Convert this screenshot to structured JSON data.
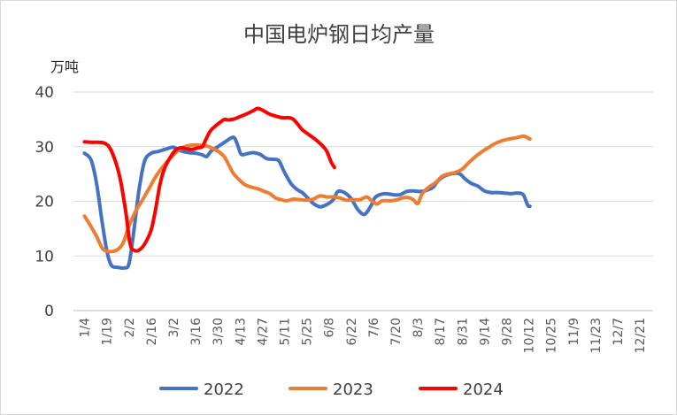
{
  "chart_data": {
    "type": "line",
    "title": "中国电炉钢日均产量",
    "ylabel": "万吨",
    "xlabel": "",
    "ylim": [
      0,
      40
    ],
    "y_ticks": [
      "0",
      "10",
      "20",
      "30",
      "40"
    ],
    "grid": true,
    "legend_position": "bottom",
    "categories": [
      "1/4",
      "1/19",
      "2/2",
      "2/16",
      "3/2",
      "3/16",
      "3/30",
      "4/13",
      "4/27",
      "5/11",
      "5/25",
      "6/8",
      "6/22",
      "7/6",
      "7/20",
      "8/3",
      "8/17",
      "8/31",
      "9/14",
      "9/28",
      "10/12",
      "10/25",
      "11/9",
      "11/23",
      "12/7",
      "12/21"
    ],
    "series": [
      {
        "name": "2022",
        "color": "#4472c4",
        "points": [
          [
            0,
            28.8
          ],
          [
            0.3,
            27.5
          ],
          [
            0.55,
            23
          ],
          [
            0.8,
            16
          ],
          [
            1.0,
            11
          ],
          [
            1.2,
            8.3
          ],
          [
            1.5,
            7.9
          ],
          [
            1.8,
            7.8
          ],
          [
            2.0,
            8.6
          ],
          [
            2.2,
            14
          ],
          [
            2.45,
            22
          ],
          [
            2.7,
            27.3
          ],
          [
            3.0,
            28.8
          ],
          [
            3.3,
            29.1
          ],
          [
            3.7,
            29.6
          ],
          [
            4.0,
            29.9
          ],
          [
            4.3,
            29.3
          ],
          [
            4.7,
            28.9
          ],
          [
            5.0,
            28.8
          ],
          [
            5.3,
            28.5
          ],
          [
            5.5,
            28.2
          ],
          [
            5.7,
            29.2
          ],
          [
            6.0,
            30.0
          ],
          [
            6.3,
            30.8
          ],
          [
            6.6,
            31.6
          ],
          [
            6.75,
            31.6
          ],
          [
            6.9,
            30.2
          ],
          [
            7.05,
            28.6
          ],
          [
            7.3,
            28.7
          ],
          [
            7.6,
            28.9
          ],
          [
            7.9,
            28.6
          ],
          [
            8.2,
            27.8
          ],
          [
            8.5,
            27.7
          ],
          [
            8.75,
            27.4
          ],
          [
            9.0,
            25.3
          ],
          [
            9.3,
            23.2
          ],
          [
            9.55,
            22.2
          ],
          [
            9.8,
            21.6
          ],
          [
            10.0,
            20.8
          ],
          [
            10.3,
            19.6
          ],
          [
            10.6,
            19.0
          ],
          [
            10.9,
            19.4
          ],
          [
            11.2,
            20.3
          ],
          [
            11.4,
            21.8
          ],
          [
            11.7,
            21.6
          ],
          [
            12.0,
            20.5
          ],
          [
            12.3,
            18.5
          ],
          [
            12.6,
            17.6
          ],
          [
            12.9,
            19.2
          ],
          [
            13.1,
            20.8
          ],
          [
            13.5,
            21.4
          ],
          [
            13.9,
            21.2
          ],
          [
            14.2,
            21.2
          ],
          [
            14.5,
            21.8
          ],
          [
            14.8,
            21.9
          ],
          [
            15.1,
            21.8
          ],
          [
            15.4,
            22.0
          ],
          [
            15.7,
            22.6
          ],
          [
            15.9,
            23.7
          ],
          [
            16.2,
            24.6
          ],
          [
            16.6,
            25.1
          ],
          [
            16.9,
            25.0
          ],
          [
            17.1,
            24.2
          ],
          [
            17.4,
            23.3
          ],
          [
            17.7,
            22.8
          ],
          [
            18.0,
            21.9
          ],
          [
            18.3,
            21.6
          ],
          [
            18.6,
            21.6
          ],
          [
            18.9,
            21.5
          ],
          [
            19.2,
            21.4
          ],
          [
            19.5,
            21.5
          ],
          [
            19.75,
            21.2
          ],
          [
            19.95,
            19.3
          ],
          [
            20.05,
            19.1
          ]
        ]
      },
      {
        "name": "2023",
        "color": "#ed7d31",
        "points": [
          [
            0,
            17.3
          ],
          [
            0.3,
            15.3
          ],
          [
            0.55,
            13.5
          ],
          [
            0.8,
            11.4
          ],
          [
            1.0,
            10.9
          ],
          [
            1.25,
            10.8
          ],
          [
            1.5,
            11.2
          ],
          [
            1.75,
            12.5
          ],
          [
            2.0,
            15.5
          ],
          [
            2.3,
            18.2
          ],
          [
            2.6,
            20.2
          ],
          [
            2.9,
            22.3
          ],
          [
            3.2,
            24.5
          ],
          [
            3.5,
            26.2
          ],
          [
            3.8,
            27.6
          ],
          [
            4.1,
            28.9
          ],
          [
            4.4,
            29.8
          ],
          [
            4.7,
            30.2
          ],
          [
            5.0,
            30.3
          ],
          [
            5.3,
            30.2
          ],
          [
            5.6,
            30.0
          ],
          [
            5.9,
            29.4
          ],
          [
            6.1,
            28.9
          ],
          [
            6.3,
            28.1
          ],
          [
            6.5,
            26.6
          ],
          [
            6.7,
            25.1
          ],
          [
            6.95,
            24.0
          ],
          [
            7.2,
            23.1
          ],
          [
            7.5,
            22.6
          ],
          [
            7.8,
            22.3
          ],
          [
            8.1,
            21.8
          ],
          [
            8.35,
            21.4
          ],
          [
            8.6,
            20.6
          ],
          [
            8.85,
            20.3
          ],
          [
            9.1,
            20.1
          ],
          [
            9.4,
            20.4
          ],
          [
            9.7,
            20.3
          ],
          [
            10.0,
            20.2
          ],
          [
            10.3,
            20.4
          ],
          [
            10.6,
            21.0
          ],
          [
            10.9,
            20.8
          ],
          [
            11.2,
            20.8
          ],
          [
            11.5,
            20.6
          ],
          [
            11.8,
            20.2
          ],
          [
            12.1,
            20.3
          ],
          [
            12.4,
            20.3
          ],
          [
            12.7,
            20.8
          ],
          [
            12.9,
            20.2
          ],
          [
            13.15,
            19.5
          ],
          [
            13.4,
            20.1
          ],
          [
            13.8,
            20.1
          ],
          [
            14.1,
            20.3
          ],
          [
            14.3,
            20.6
          ],
          [
            14.55,
            20.7
          ],
          [
            14.8,
            20.3
          ],
          [
            15.0,
            19.6
          ],
          [
            15.2,
            21.4
          ],
          [
            15.5,
            22.6
          ],
          [
            15.8,
            23.4
          ],
          [
            16.1,
            24.6
          ],
          [
            16.4,
            25.0
          ],
          [
            16.7,
            25.3
          ],
          [
            17.0,
            25.9
          ],
          [
            17.3,
            27.1
          ],
          [
            17.6,
            28.2
          ],
          [
            17.9,
            29.1
          ],
          [
            18.2,
            29.9
          ],
          [
            18.5,
            30.6
          ],
          [
            18.8,
            31.1
          ],
          [
            19.1,
            31.4
          ],
          [
            19.4,
            31.6
          ],
          [
            19.6,
            31.8
          ],
          [
            19.8,
            31.9
          ],
          [
            20.05,
            31.4
          ]
        ]
      },
      {
        "name": "2024",
        "color": "#ff0000",
        "points": [
          [
            0,
            30.9
          ],
          [
            0.3,
            30.8
          ],
          [
            0.6,
            30.8
          ],
          [
            0.85,
            30.7
          ],
          [
            1.1,
            30.0
          ],
          [
            1.35,
            27.8
          ],
          [
            1.6,
            24.2
          ],
          [
            1.85,
            18.2
          ],
          [
            2.05,
            12.2
          ],
          [
            2.25,
            11.0
          ],
          [
            2.5,
            11.2
          ],
          [
            2.75,
            12.5
          ],
          [
            3.0,
            14.8
          ],
          [
            3.2,
            18.6
          ],
          [
            3.4,
            23.2
          ],
          [
            3.6,
            26.0
          ],
          [
            3.85,
            28.0
          ],
          [
            4.1,
            29.4
          ],
          [
            4.35,
            29.8
          ],
          [
            4.6,
            29.6
          ],
          [
            4.85,
            29.5
          ],
          [
            5.1,
            29.8
          ],
          [
            5.3,
            30.0
          ],
          [
            5.45,
            31.2
          ],
          [
            5.65,
            32.8
          ],
          [
            5.9,
            33.8
          ],
          [
            6.15,
            34.6
          ],
          [
            6.3,
            35.0
          ],
          [
            6.5,
            34.9
          ],
          [
            6.75,
            35.1
          ],
          [
            7.0,
            35.5
          ],
          [
            7.3,
            36.0
          ],
          [
            7.6,
            36.6
          ],
          [
            7.8,
            37.0
          ],
          [
            8.05,
            36.6
          ],
          [
            8.3,
            36.0
          ],
          [
            8.6,
            35.6
          ],
          [
            8.9,
            35.3
          ],
          [
            9.2,
            35.3
          ],
          [
            9.4,
            35.0
          ],
          [
            9.6,
            34.1
          ],
          [
            9.8,
            33.1
          ],
          [
            10.1,
            32.2
          ],
          [
            10.4,
            31.3
          ],
          [
            10.7,
            30.2
          ],
          [
            10.9,
            29.2
          ],
          [
            11.1,
            27.2
          ],
          [
            11.25,
            26.2
          ]
        ]
      }
    ]
  }
}
